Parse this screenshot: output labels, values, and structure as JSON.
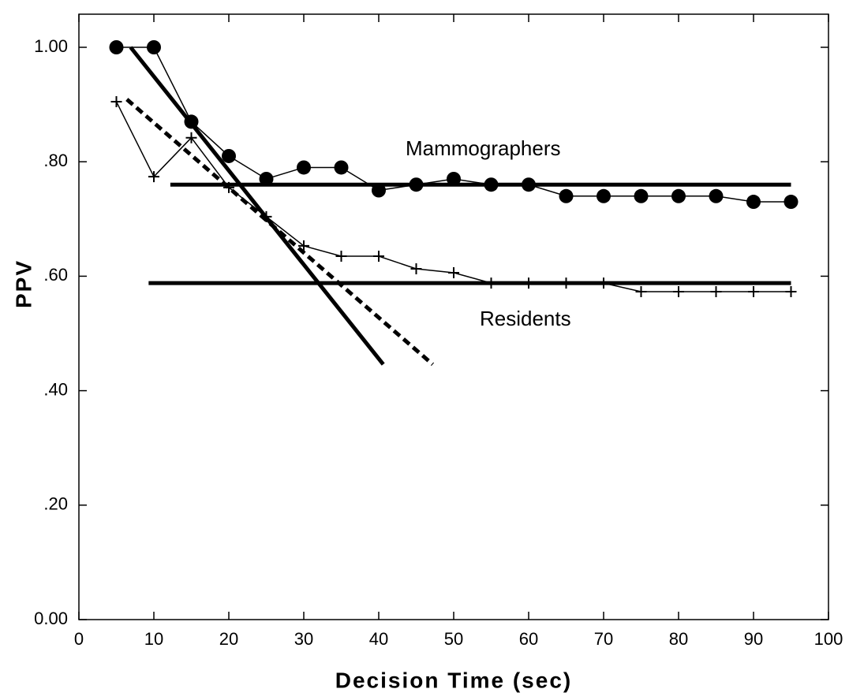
{
  "chart_data": {
    "type": "line",
    "xlabel": "Decision Time (sec)",
    "ylabel": "PPV",
    "xlim": [
      0,
      100
    ],
    "ylim": [
      0,
      1
    ],
    "xticks": [
      0,
      10,
      20,
      30,
      40,
      50,
      60,
      70,
      80,
      90,
      100
    ],
    "yticks": [
      {
        "value": 0,
        "label": "0.00"
      },
      {
        "value": 0.2,
        "label": ".20"
      },
      {
        "value": 0.4,
        "label": ".40"
      },
      {
        "value": 0.6,
        "label": ".60"
      },
      {
        "value": 0.8,
        "label": ".80"
      },
      {
        "value": 1,
        "label": "1.00"
      }
    ],
    "series": [
      {
        "marker": "circle",
        "color": "#000",
        "x": [
          5,
          10,
          15,
          20,
          25,
          30,
          35,
          40,
          45,
          50,
          55,
          60,
          65,
          70,
          75,
          80,
          85,
          90,
          95
        ],
        "values": [
          1.0,
          1.0,
          0.87,
          0.81,
          0.77,
          0.79,
          0.79,
          0.75,
          0.76,
          0.77,
          0.76,
          0.76,
          0.74,
          0.74,
          0.74,
          0.74,
          0.74,
          0.73,
          0.73
        ]
      },
      {
        "marker": "plus",
        "color": "#000",
        "x": [
          5,
          10,
          15,
          20,
          25,
          30,
          35,
          40,
          45,
          50,
          55,
          60,
          65,
          70,
          75,
          80,
          85,
          90,
          95
        ],
        "values": [
          0.905,
          0.774,
          0.842,
          0.755,
          0.704,
          0.653,
          0.635,
          0.635,
          0.613,
          0.606,
          0.588,
          0.588,
          0.588,
          0.588,
          0.573,
          0.573,
          0.573,
          0.573,
          0.573
        ]
      },
      {
        "marker": "none",
        "style": "solid",
        "color": "#000",
        "x": [
          12.2,
          95
        ],
        "values": [
          0.76,
          0.76
        ]
      },
      {
        "marker": "none",
        "style": "solid",
        "color": "#000",
        "x": [
          9.3,
          95
        ],
        "values": [
          0.588,
          0.588
        ]
      },
      {
        "marker": "none",
        "style": "solid",
        "color": "#000",
        "x": [
          6.9,
          40.6
        ],
        "values": [
          1.0,
          0.446
        ]
      },
      {
        "marker": "none",
        "style": "dashed",
        "color": "#000",
        "x": [
          6.4,
          47.2
        ],
        "values": [
          0.909,
          0.446
        ]
      }
    ],
    "annotations": [
      "Mammographers",
      "Residents"
    ]
  }
}
